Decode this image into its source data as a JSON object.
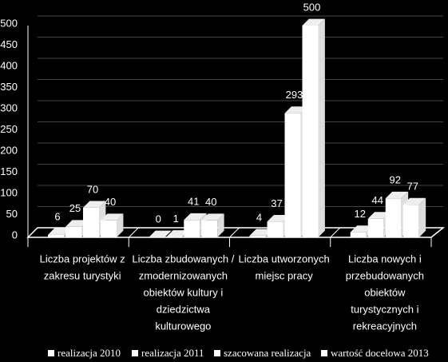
{
  "chart_data": {
    "type": "bar3d",
    "categories": [
      [
        "Liczba projektów z",
        "zakresu turystyki"
      ],
      [
        "Liczba zbudowanych /",
        "zmodernizowanych",
        "obiektów kultury i",
        "dziedzictwa",
        "kulturowego"
      ],
      [
        "Liczba utworzonych",
        "miejsc pracy"
      ],
      [
        "Liczba nowych i",
        "przebudowanych",
        "obiektów",
        "turystycznych i",
        "rekreacyjnych"
      ]
    ],
    "series": [
      {
        "name": "realizacja 2010",
        "color": "#ffffff",
        "values": [
          6,
          0,
          4,
          12
        ]
      },
      {
        "name": "realizacja 2011",
        "color": "#ffffff",
        "values": [
          25,
          1,
          37,
          44
        ]
      },
      {
        "name": "szacowana realizacja",
        "color": "#ffffff",
        "values": [
          70,
          41,
          293,
          92
        ]
      },
      {
        "name": "wartość docelowa 2013",
        "color": "#ffffff",
        "values": [
          40,
          40,
          500,
          77
        ]
      }
    ],
    "ylim": [
      0,
      500
    ],
    "yticks": [
      0,
      50,
      100,
      150,
      200,
      250,
      300,
      350,
      400,
      450,
      500
    ],
    "grid": true,
    "legend": "bottom"
  }
}
